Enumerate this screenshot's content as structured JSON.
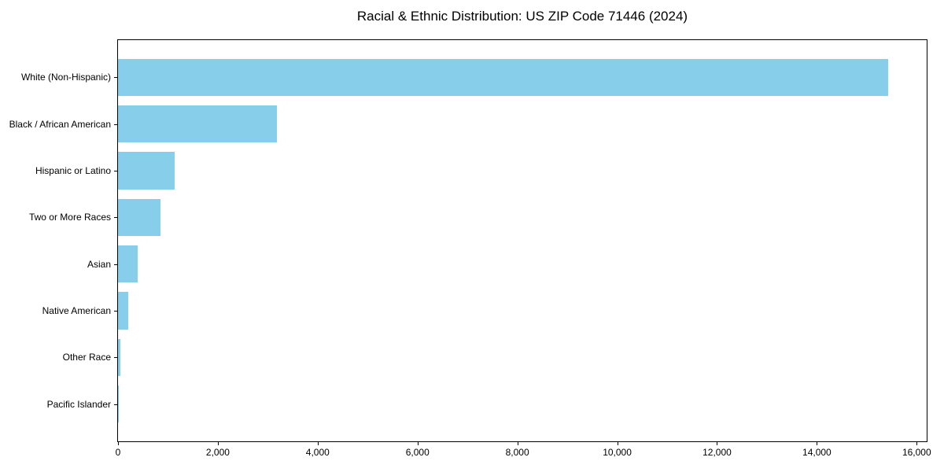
{
  "chart_data": {
    "type": "bar",
    "orientation": "horizontal",
    "title": "Racial & Ethnic Distribution: US ZIP Code 71446 (2024)",
    "categories": [
      "White (Non-Hispanic)",
      "Black / African American",
      "Hispanic or Latino",
      "Two or More Races",
      "Asian",
      "Native American",
      "Other Race",
      "Pacific Islander"
    ],
    "values": [
      15420,
      3190,
      1130,
      850,
      390,
      205,
      40,
      10
    ],
    "xlabel": "",
    "ylabel": "",
    "xlim": [
      0,
      16200
    ],
    "x_ticks": [
      0,
      2000,
      4000,
      6000,
      8000,
      10000,
      12000,
      14000,
      16000
    ],
    "x_tick_labels": [
      "0",
      "2,000",
      "4,000",
      "6,000",
      "8,000",
      "10,000",
      "12,000",
      "14,000",
      "16,000"
    ],
    "bar_color": "#87CEEB",
    "frame_color": "#000000",
    "grid": false,
    "legend": null
  }
}
